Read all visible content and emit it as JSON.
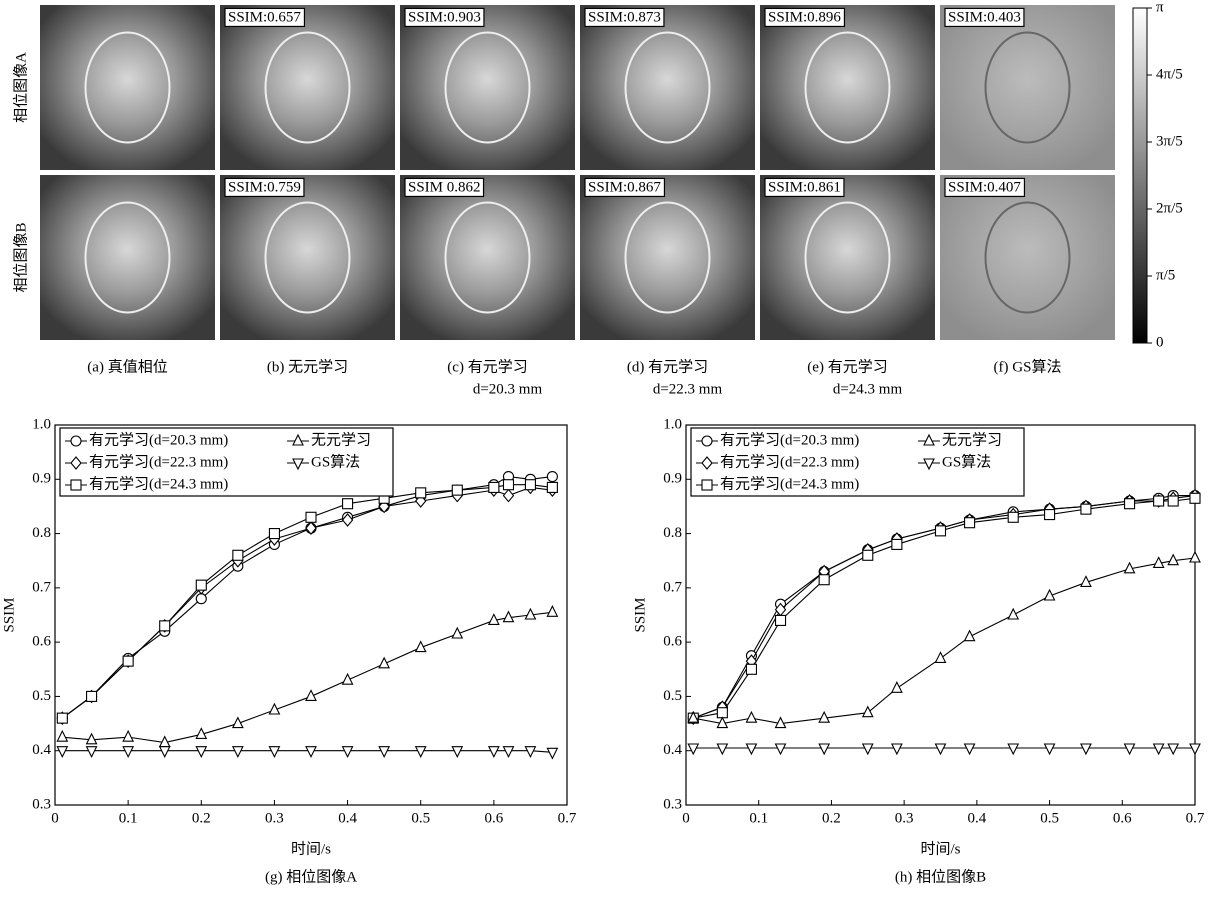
{
  "figure": {
    "row_labels": [
      "相位图像A",
      "相位图像B"
    ],
    "columns": [
      {
        "caption": "(a) 真值相位"
      },
      {
        "caption": "(b) 无元学习"
      },
      {
        "caption": "(c) 有元学习",
        "subcaption": "d=20.3 mm"
      },
      {
        "caption": "(d) 有元学习",
        "subcaption": "d=22.3 mm"
      },
      {
        "caption": "(e) 有元学习",
        "subcaption": "d=24.3 mm"
      },
      {
        "caption": "(f) GS算法"
      }
    ],
    "ssim_labels": [
      [
        "SSIM:0.657",
        "SSIM:0.903",
        "SSIM:0.873",
        "SSIM:0.896",
        "SSIM:0.403"
      ],
      [
        "SSIM:0.759",
        "SSIM 0.862",
        "SSIM:0.867",
        "SSIM:0.861",
        "SSIM:0.407"
      ]
    ]
  },
  "colorbar": {
    "lim": [
      0,
      1
    ],
    "ticks": [
      {
        "value": 1,
        "label": "π"
      },
      {
        "value": 0.8,
        "label": "4π/5"
      },
      {
        "value": 0.6,
        "label": "3π/5"
      },
      {
        "value": 0.4,
        "label": "2π/5"
      },
      {
        "value": 0.2,
        "label": "π/5"
      },
      0
    ]
  },
  "chart_data": [
    {
      "type": "line",
      "caption": "(g) 相位图像A",
      "x_label": "时间/s",
      "y_label": "SSIM",
      "xlim": [
        0,
        0.7
      ],
      "ylim": [
        0.3,
        1.0
      ],
      "xticks": [
        0,
        0.1,
        0.2,
        0.3,
        0.4,
        0.5,
        0.6,
        0.7
      ],
      "yticks": [
        0.3,
        0.4,
        0.5,
        0.6,
        0.7,
        0.8,
        0.9,
        {
          "value": 1,
          "label": "1.0"
        }
      ],
      "x": [
        0.01,
        0.05,
        0.1,
        0.15,
        0.2,
        0.25,
        0.3,
        0.35,
        0.4,
        0.45,
        0.5,
        0.55,
        0.6,
        0.62,
        0.65,
        0.68
      ],
      "series": [
        {
          "name": "有元学习(d=20.3 mm)",
          "color": "#000",
          "marker": "circle",
          "values": [
            0.46,
            0.5,
            0.57,
            0.62,
            0.68,
            0.74,
            0.78,
            0.81,
            0.83,
            0.85,
            0.87,
            0.88,
            0.89,
            0.905,
            0.9,
            0.905
          ]
        },
        {
          "name": "有元学习(d=22.3 mm)",
          "color": "#000",
          "marker": "diamond",
          "values": [
            0.46,
            0.5,
            0.565,
            0.63,
            0.7,
            0.75,
            0.79,
            0.81,
            0.825,
            0.85,
            0.86,
            0.87,
            0.88,
            0.87,
            0.885,
            0.88
          ]
        },
        {
          "name": "有元学习(d=24.3 mm)",
          "color": "#000",
          "marker": "square",
          "values": [
            0.46,
            0.5,
            0.565,
            0.63,
            0.705,
            0.76,
            0.8,
            0.83,
            0.855,
            0.865,
            0.875,
            0.88,
            0.885,
            0.89,
            0.89,
            0.885
          ]
        },
        {
          "name": "无元学习",
          "color": "#000",
          "marker": "triangle-up",
          "values": [
            0.425,
            0.42,
            0.425,
            0.415,
            0.43,
            0.45,
            0.475,
            0.5,
            0.53,
            0.56,
            0.59,
            0.615,
            0.64,
            0.645,
            0.65,
            0.655
          ]
        },
        {
          "name": "GS算法",
          "color": "#000",
          "marker": "triangle-down",
          "values": [
            0.4,
            0.4,
            0.4,
            0.4,
            0.4,
            0.4,
            0.4,
            0.4,
            0.4,
            0.4,
            0.4,
            0.4,
            0.4,
            0.4,
            0.4,
            0.397
          ]
        }
      ]
    },
    {
      "type": "line",
      "caption": "(h) 相位图像B",
      "x_label": "时间/s",
      "y_label": "SSIM",
      "xlim": [
        0,
        0.7
      ],
      "ylim": [
        0.3,
        1.0
      ],
      "xticks": [
        0,
        0.1,
        0.2,
        0.3,
        0.4,
        0.5,
        0.6,
        0.7
      ],
      "yticks": [
        0.3,
        0.4,
        0.5,
        0.6,
        0.7,
        0.8,
        0.9,
        {
          "value": 1,
          "label": "1.0"
        }
      ],
      "x": [
        0.01,
        0.05,
        0.09,
        0.13,
        0.19,
        0.25,
        0.29,
        0.35,
        0.39,
        0.45,
        0.5,
        0.55,
        0.61,
        0.65,
        0.67,
        0.7
      ],
      "series": [
        {
          "name": "有元学习(d=20.3 mm)",
          "color": "#000",
          "marker": "circle",
          "values": [
            0.46,
            0.48,
            0.575,
            0.67,
            0.73,
            0.77,
            0.79,
            0.81,
            0.825,
            0.84,
            0.845,
            0.85,
            0.86,
            0.865,
            0.87,
            0.87
          ]
        },
        {
          "name": "有元学习(d=22.3 mm)",
          "color": "#000",
          "marker": "diamond",
          "values": [
            0.46,
            0.48,
            0.565,
            0.66,
            0.73,
            0.77,
            0.79,
            0.81,
            0.825,
            0.835,
            0.845,
            0.85,
            0.86,
            0.86,
            0.865,
            0.87
          ]
        },
        {
          "name": "有元学习(d=24.3 mm)",
          "color": "#000",
          "marker": "square",
          "values": [
            0.46,
            0.47,
            0.55,
            0.64,
            0.715,
            0.76,
            0.78,
            0.805,
            0.82,
            0.83,
            0.835,
            0.845,
            0.855,
            0.86,
            0.86,
            0.865
          ]
        },
        {
          "name": "无元学习",
          "color": "#000",
          "marker": "triangle-up",
          "values": [
            0.46,
            0.45,
            0.46,
            0.45,
            0.46,
            0.47,
            0.515,
            0.57,
            0.61,
            0.65,
            0.685,
            0.71,
            0.735,
            0.745,
            0.75,
            0.755
          ]
        },
        {
          "name": "GS算法",
          "color": "#000",
          "marker": "triangle-down",
          "values": [
            0.405,
            0.405,
            0.405,
            0.405,
            0.405,
            0.405,
            0.405,
            0.405,
            0.405,
            0.405,
            0.405,
            0.405,
            0.405,
            0.405,
            0.405,
            0.405
          ]
        }
      ]
    }
  ]
}
